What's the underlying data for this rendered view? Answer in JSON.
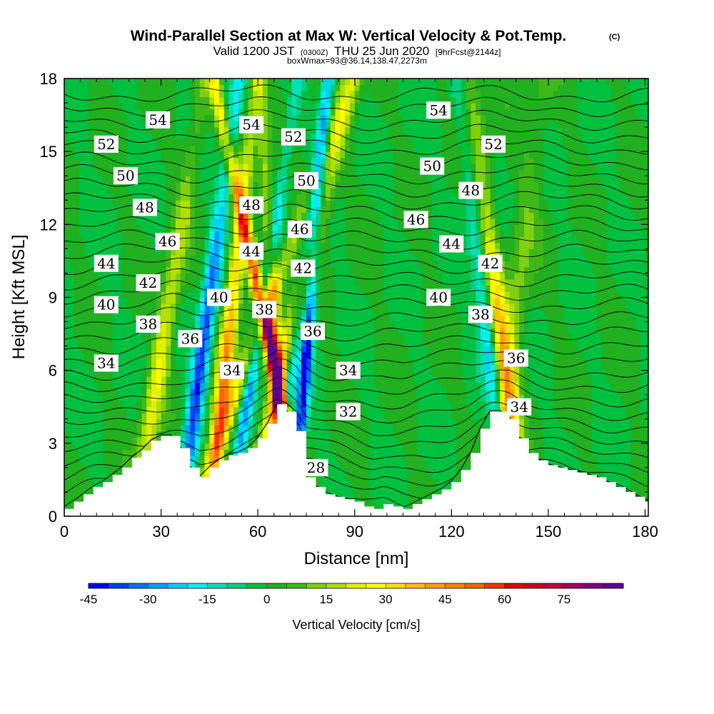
{
  "header": {
    "title": "Wind-Parallel Section at Max W: Vertical Velocity & Pot.Temp.",
    "title_mark": "(C)",
    "valid_prefix": "Valid 1200 JST",
    "valid_z": "(0300Z)",
    "valid_date": "THU 25 Jun 2020",
    "valid_fcst": "[9hrFcst@2144z]",
    "box_info": "boxWmax=93@36.14,138.47,2273m"
  },
  "chart_data": {
    "type": "heatmap",
    "xlabel": "Distance [nm]",
    "ylabel": "Height [Kft MSL]",
    "xlim": [
      0,
      181
    ],
    "ylim": [
      0,
      18
    ],
    "x_ticks": [
      "0",
      "30",
      "60",
      "90",
      "120",
      "150",
      "180"
    ],
    "y_ticks": [
      "0",
      "3",
      "6",
      "9",
      "12",
      "15",
      "18"
    ],
    "colorbar": {
      "label": "Vertical Velocity [cm/s]",
      "ticks": [
        "-45",
        "-30",
        "-15",
        "0",
        "15",
        "30",
        "45",
        "60",
        "75"
      ],
      "range": [
        -45,
        90
      ],
      "step": 5,
      "colors": [
        "#0000ff",
        "#0040ff",
        "#0070ff",
        "#00a0ff",
        "#00d0ff",
        "#00f0f0",
        "#00e0b0",
        "#00d080",
        "#00c040",
        "#20b020",
        "#40b818",
        "#80d010",
        "#b0e000",
        "#e0f000",
        "#ffff00",
        "#ffe000",
        "#ffc000",
        "#ffa000",
        "#ff8000",
        "#ff6000",
        "#ff3000",
        "#e80000",
        "#d00020",
        "#c00040",
        "#a00060",
        "#800080",
        "#600090"
      ]
    },
    "terrain_kft": [
      [
        0,
        0.3
      ],
      [
        3,
        0.6
      ],
      [
        6,
        0.9
      ],
      [
        9,
        1.2
      ],
      [
        12,
        1.4
      ],
      [
        15,
        1.7
      ],
      [
        18,
        2
      ],
      [
        21,
        2.4
      ],
      [
        24,
        2.7
      ],
      [
        27,
        3.1
      ],
      [
        30,
        3.3
      ],
      [
        33,
        3.3
      ],
      [
        36,
        2.8
      ],
      [
        39,
        2
      ],
      [
        42,
        1.6
      ],
      [
        45,
        2
      ],
      [
        48,
        2.3
      ],
      [
        51,
        2.5
      ],
      [
        54,
        2.6
      ],
      [
        57,
        2.8
      ],
      [
        60,
        3.2
      ],
      [
        63,
        3.8
      ],
      [
        66,
        4.6
      ],
      [
        69,
        4.3
      ],
      [
        72,
        3.5
      ],
      [
        75,
        1.6
      ],
      [
        78,
        1.2
      ],
      [
        81,
        0.9
      ],
      [
        84,
        0.8
      ],
      [
        87,
        0.7
      ],
      [
        90,
        0.6
      ],
      [
        93,
        0.4
      ],
      [
        96,
        0.3
      ],
      [
        99,
        0.5
      ],
      [
        102,
        0.4
      ],
      [
        105,
        0.3
      ],
      [
        108,
        0.5
      ],
      [
        111,
        0.7
      ],
      [
        114,
        0.9
      ],
      [
        117,
        1.1
      ],
      [
        120,
        1.4
      ],
      [
        123,
        1.9
      ],
      [
        126,
        2.6
      ],
      [
        129,
        3.6
      ],
      [
        132,
        4.3
      ],
      [
        135,
        4.3
      ],
      [
        138,
        4
      ],
      [
        141,
        3.2
      ],
      [
        144,
        2.6
      ],
      [
        147,
        2.3
      ],
      [
        150,
        2.1
      ],
      [
        153,
        2
      ],
      [
        156,
        1.9
      ],
      [
        159,
        1.8
      ],
      [
        162,
        1.7
      ],
      [
        165,
        1.6
      ],
      [
        168,
        1.4
      ],
      [
        171,
        1.2
      ],
      [
        174,
        1
      ],
      [
        177,
        0.8
      ],
      [
        180,
        0.6
      ],
      [
        181,
        0.6
      ]
    ],
    "updrafts": [
      {
        "x0": 22,
        "slope": 1.2,
        "amp": 25,
        "width": 3
      },
      {
        "x0": 45,
        "slope": 0.8,
        "amp": 45,
        "width": 2.5
      },
      {
        "x0": 57,
        "slope": 1.8,
        "amp": 40,
        "width": 3
      },
      {
        "x0": 39,
        "slope": 2.8,
        "amp": 25,
        "width": 3
      },
      {
        "x0": 75,
        "slope": -1.6,
        "amp": 70,
        "width": 2
      },
      {
        "x0": 68,
        "slope": -0.4,
        "amp": 35,
        "width": 2
      },
      {
        "x0": 142,
        "slope": -0.9,
        "amp": 35,
        "width": 3
      },
      {
        "x0": 132,
        "slope": 0.9,
        "amp": 15,
        "width": 4
      }
    ],
    "downdrafts": [
      {
        "x0": 36,
        "slope": 1.0,
        "amp": -40,
        "width": 2.5
      },
      {
        "x0": 51,
        "slope": 1.2,
        "amp": -30,
        "width": 2
      },
      {
        "x0": 64,
        "slope": 1.0,
        "amp": -35,
        "width": 2
      },
      {
        "x0": 71,
        "slope": 0.6,
        "amp": -45,
        "width": 1.8
      },
      {
        "x0": 138,
        "slope": -0.9,
        "amp": -25,
        "width": 2.5
      }
    ],
    "contour_labels": [
      {
        "text": "54",
        "x": 29,
        "y": 16.3
      },
      {
        "text": "54",
        "x": 58,
        "y": 16.1
      },
      {
        "text": "54",
        "x": 116,
        "y": 16.7
      },
      {
        "text": "52",
        "x": 13,
        "y": 15.3
      },
      {
        "text": "52",
        "x": 71,
        "y": 15.6
      },
      {
        "text": "52",
        "x": 133,
        "y": 15.3
      },
      {
        "text": "50",
        "x": 19,
        "y": 14.0
      },
      {
        "text": "50",
        "x": 75,
        "y": 13.8
      },
      {
        "text": "50",
        "x": 114,
        "y": 14.4
      },
      {
        "text": "48",
        "x": 25,
        "y": 12.7
      },
      {
        "text": "48",
        "x": 58,
        "y": 12.8
      },
      {
        "text": "48",
        "x": 126,
        "y": 13.4
      },
      {
        "text": "46",
        "x": 32,
        "y": 11.3
      },
      {
        "text": "46",
        "x": 73,
        "y": 11.8
      },
      {
        "text": "46",
        "x": 109,
        "y": 12.2
      },
      {
        "text": "44",
        "x": 13,
        "y": 10.4
      },
      {
        "text": "44",
        "x": 58,
        "y": 10.9
      },
      {
        "text": "44",
        "x": 120,
        "y": 11.2
      },
      {
        "text": "42",
        "x": 26,
        "y": 9.6
      },
      {
        "text": "42",
        "x": 74,
        "y": 10.2
      },
      {
        "text": "42",
        "x": 132,
        "y": 10.4
      },
      {
        "text": "40",
        "x": 13,
        "y": 8.7
      },
      {
        "text": "40",
        "x": 48,
        "y": 9.0
      },
      {
        "text": "40",
        "x": 116,
        "y": 9.0
      },
      {
        "text": "38",
        "x": 26,
        "y": 7.9
      },
      {
        "text": "38",
        "x": 62,
        "y": 8.5
      },
      {
        "text": "38",
        "x": 129,
        "y": 8.3
      },
      {
        "text": "36",
        "x": 39,
        "y": 7.3
      },
      {
        "text": "36",
        "x": 77,
        "y": 7.6
      },
      {
        "text": "36",
        "x": 140,
        "y": 6.5
      },
      {
        "text": "34",
        "x": 13,
        "y": 6.3
      },
      {
        "text": "34",
        "x": 52,
        "y": 6.0
      },
      {
        "text": "34",
        "x": 88,
        "y": 6.0
      },
      {
        "text": "34",
        "x": 141,
        "y": 4.5
      },
      {
        "text": "32",
        "x": 88,
        "y": 4.3
      },
      {
        "text": "28",
        "x": 78,
        "y": 2.0
      }
    ]
  }
}
